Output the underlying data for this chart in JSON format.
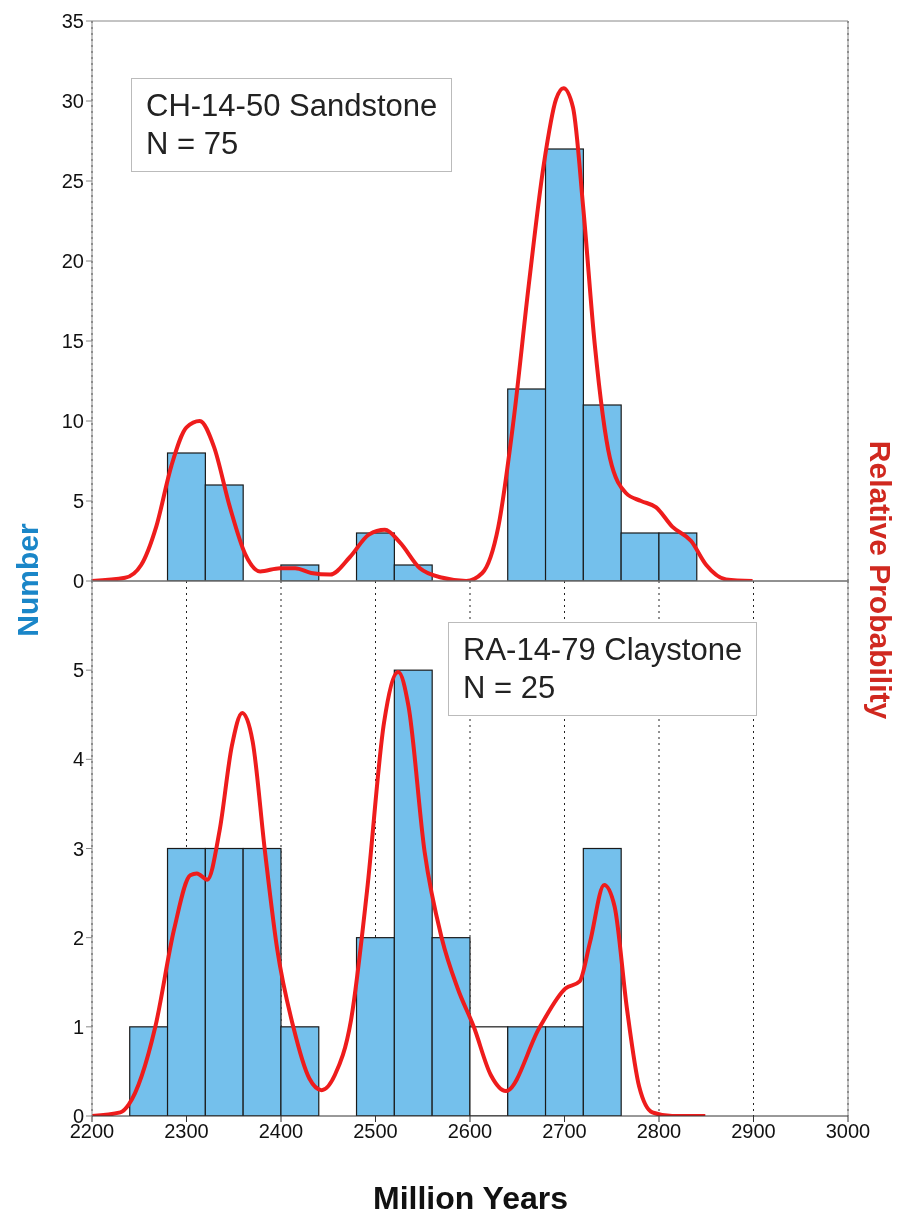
{
  "chart_data": [
    {
      "type": "histogram",
      "ylabel": "Number",
      "y2label": "Relative Probability",
      "annotations": [
        "CH-14-50 Sandstone",
        "N = 75"
      ],
      "bins": [
        2240,
        2280,
        2320,
        2360,
        2400,
        2440,
        2480,
        2520,
        2560,
        2600,
        2640,
        2680,
        2720,
        2760,
        2800,
        2840
      ],
      "series": [
        {
          "color": "#74c0ec",
          "values": [
            0,
            8,
            6,
            0,
            1,
            0,
            3,
            1,
            0,
            0,
            12,
            27,
            11,
            3,
            3
          ]
        },
        {
          "type": "line",
          "color": "#ee1c1c",
          "x": [
            2200,
            2235,
            2252,
            2268,
            2284,
            2300,
            2314,
            2329,
            2346,
            2362,
            2378,
            2399,
            2415,
            2432,
            2452,
            2473,
            2493,
            2510,
            2526,
            2547,
            2571,
            2596,
            2613,
            2630,
            2646,
            2662,
            2678,
            2691,
            2699,
            2709,
            2720,
            2732,
            2748,
            2765,
            2781,
            2797,
            2814,
            2834,
            2850,
            2871,
            2899
          ],
          "values": [
            0,
            0.2,
            1,
            3.4,
            7.2,
            9.6,
            10,
            8.4,
            4.6,
            1.7,
            0.6,
            0.8,
            0.8,
            0.5,
            0.4,
            1.5,
            2.9,
            3.2,
            2.4,
            0.8,
            0.2,
            0,
            0.5,
            3.4,
            10,
            18.4,
            26,
            30.1,
            30.8,
            29.6,
            23.2,
            14.8,
            7.7,
            5.5,
            5,
            4.6,
            3.4,
            2.5,
            1,
            0.1,
            0
          ]
        }
      ],
      "xlim": [
        2200,
        3000
      ],
      "xticks": [
        2200,
        2300,
        2400,
        2500,
        2600,
        2700,
        2800,
        2900,
        3000
      ],
      "ylim": [
        0,
        35
      ],
      "yticks": [
        0,
        5,
        10,
        15,
        20,
        25,
        30,
        35
      ],
      "grid": "x",
      "tick_labels": "y"
    },
    {
      "type": "histogram",
      "xlabel": "Million Years",
      "annotations": [
        "RA-14-79 Claystone",
        "N = 25"
      ],
      "bins": [
        2240,
        2280,
        2320,
        2360,
        2400,
        2440,
        2480,
        2520,
        2560,
        2600,
        2640,
        2680,
        2720,
        2760,
        2800,
        2840
      ],
      "series": [
        {
          "colors": [
            "#74c0ec",
            "#74c0ec",
            "#74c0ec",
            "#74c0ec",
            "#74c0ec",
            "#74c0ec",
            "#74c0ec",
            "#74c0ec",
            "#74c0ec",
            "#ffffff",
            "#74c0ec",
            "#74c0ec",
            "#74c0ec",
            "#74c0ec",
            "#74c0ec"
          ],
          "values": [
            1,
            3,
            3,
            3,
            1,
            0,
            2,
            5,
            2,
            1,
            1,
            1,
            3,
            0,
            0
          ]
        },
        {
          "type": "line",
          "color": "#ee1c1c",
          "x": [
            2200,
            2230,
            2239,
            2267,
            2287,
            2304,
            2311,
            2322,
            2335,
            2348,
            2359,
            2370,
            2383,
            2396,
            2413,
            2430,
            2443,
            2457,
            2474,
            2491,
            2509,
            2524,
            2535,
            2552,
            2570,
            2587,
            2604,
            2622,
            2638,
            2674,
            2701,
            2716,
            2727,
            2742,
            2753,
            2766,
            2779,
            2793,
            2814,
            2849
          ],
          "values": [
            0,
            0.04,
            0.13,
            1,
            2.1,
            2.7,
            2.72,
            2.65,
            3.2,
            4.15,
            4.52,
            4.2,
            2.97,
            1.87,
            1,
            0.42,
            0.29,
            0.46,
            1.07,
            2.52,
            4.41,
            4.98,
            4.59,
            2.96,
            2,
            1.43,
            1,
            0.46,
            0.28,
            1,
            1.43,
            1.51,
            1.95,
            2.59,
            2.35,
            1.21,
            0.33,
            0.04,
            0,
            0
          ]
        }
      ],
      "xlim": [
        2200,
        3000
      ],
      "xticks": [
        2200,
        2300,
        2400,
        2500,
        2600,
        2700,
        2800,
        2900,
        3000
      ],
      "ylim": [
        0,
        6
      ],
      "yticks": [
        0,
        1,
        2,
        3,
        4,
        5
      ],
      "grid": "x"
    }
  ]
}
